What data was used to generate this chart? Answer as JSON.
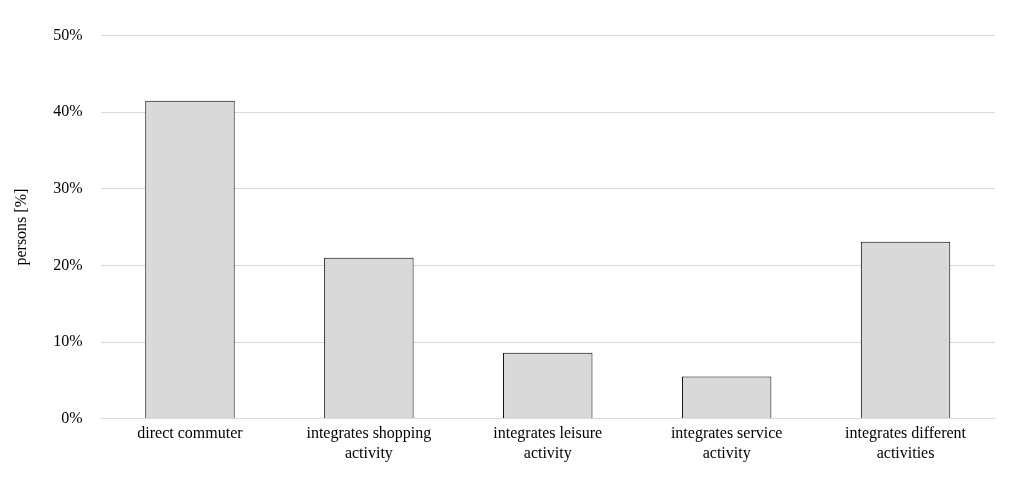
{
  "chart_data": {
    "type": "bar",
    "ylabel": "persons [%]",
    "categories": [
      "direct commuter",
      "integrates shopping activity",
      "integrates leisure activity",
      "integrates service activity",
      "integrates different activities"
    ],
    "values": [
      41.5,
      21.0,
      8.6,
      5.5,
      23.1
    ],
    "color": "#d9d9d9",
    "ylim": [
      0,
      50
    ],
    "yticks": [
      {
        "value": 0,
        "label": "0%"
      },
      {
        "value": 10,
        "label": "10%"
      },
      {
        "value": 20,
        "label": "20%"
      },
      {
        "value": 30,
        "label": "30%"
      },
      {
        "value": 40,
        "label": "40%"
      },
      {
        "value": 50,
        "label": "50%"
      }
    ],
    "grid": "y"
  }
}
